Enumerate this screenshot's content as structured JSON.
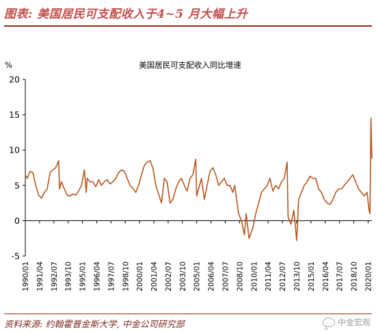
{
  "figure": {
    "title": "图表: 美国居民可支配收入于4~5 月大幅上升",
    "source": "资料来源: 约翰霍普金斯大学, 中金公司研究部",
    "watermark": "中金宏观",
    "watermark_icon": "wechat-icon"
  },
  "colors": {
    "line": "#b5561c",
    "title": "#c0504d",
    "rule": "#9c2a22",
    "axis": "#000000"
  },
  "chart_data": {
    "type": "line",
    "title": "美国居民可支配收入同比增速",
    "ylabel": "%",
    "xlabel": "",
    "ylim": [
      -5,
      20
    ],
    "yticks": [
      -5,
      0,
      5,
      10,
      15,
      20
    ],
    "xlim": [
      "1990/01",
      "2020/05"
    ],
    "xticks": [
      "1990/01",
      "1991/04",
      "1992/07",
      "1993/10",
      "1995/01",
      "1996/04",
      "1997/07",
      "1998/10",
      "2000/01",
      "2001/04",
      "2002/07",
      "2003/10",
      "2005/01",
      "2006/04",
      "2007/07",
      "2008/10",
      "2010/01",
      "2011/04",
      "2012/07",
      "2013/10",
      "2015/01",
      "2016/04",
      "2017/07",
      "2018/10",
      "2020/01"
    ],
    "grid": false,
    "legend": "none",
    "series": [
      {
        "values_unit": "%",
        "points": [
          [
            "1990/01",
            6.5
          ],
          [
            "1990/03",
            6.0
          ],
          [
            "1990/06",
            7.0
          ],
          [
            "1990/09",
            6.8
          ],
          [
            "1990/12",
            5.0
          ],
          [
            "1991/03",
            3.6
          ],
          [
            "1991/06",
            3.2
          ],
          [
            "1991/09",
            4.0
          ],
          [
            "1991/12",
            4.5
          ],
          [
            "1992/03",
            6.8
          ],
          [
            "1992/06",
            7.2
          ],
          [
            "1992/09",
            7.5
          ],
          [
            "1992/12",
            8.5
          ],
          [
            "1993/01",
            4.5
          ],
          [
            "1993/03",
            5.5
          ],
          [
            "1993/06",
            4.5
          ],
          [
            "1993/09",
            3.6
          ],
          [
            "1993/12",
            3.5
          ],
          [
            "1994/03",
            3.8
          ],
          [
            "1994/06",
            3.6
          ],
          [
            "1994/09",
            4.2
          ],
          [
            "1994/12",
            5.0
          ],
          [
            "1995/03",
            7.2
          ],
          [
            "1995/05",
            4.0
          ],
          [
            "1995/06",
            6.0
          ],
          [
            "1995/09",
            5.5
          ],
          [
            "1995/12",
            5.5
          ],
          [
            "1996/03",
            4.8
          ],
          [
            "1996/06",
            5.8
          ],
          [
            "1996/09",
            5.0
          ],
          [
            "1996/12",
            5.5
          ],
          [
            "1997/03",
            5.8
          ],
          [
            "1997/06",
            5.2
          ],
          [
            "1997/09",
            5.5
          ],
          [
            "1997/12",
            6.0
          ],
          [
            "1998/03",
            6.8
          ],
          [
            "1998/06",
            7.2
          ],
          [
            "1998/09",
            7.0
          ],
          [
            "1998/12",
            6.0
          ],
          [
            "1999/03",
            5.0
          ],
          [
            "1999/06",
            4.6
          ],
          [
            "1999/09",
            4.0
          ],
          [
            "1999/12",
            5.0
          ],
          [
            "2000/03",
            6.5
          ],
          [
            "2000/06",
            7.8
          ],
          [
            "2000/09",
            8.3
          ],
          [
            "2000/12",
            8.5
          ],
          [
            "2001/03",
            7.5
          ],
          [
            "2001/06",
            5.0
          ],
          [
            "2001/09",
            3.8
          ],
          [
            "2001/12",
            2.5
          ],
          [
            "2002/03",
            6.0
          ],
          [
            "2002/06",
            5.5
          ],
          [
            "2002/09",
            2.5
          ],
          [
            "2002/12",
            3.0
          ],
          [
            "2003/03",
            4.5
          ],
          [
            "2003/06",
            5.5
          ],
          [
            "2003/09",
            6.0
          ],
          [
            "2003/12",
            5.0
          ],
          [
            "2004/03",
            4.2
          ],
          [
            "2004/06",
            6.0
          ],
          [
            "2004/09",
            6.5
          ],
          [
            "2004/12",
            8.7
          ],
          [
            "2005/01",
            3.5
          ],
          [
            "2005/03",
            4.5
          ],
          [
            "2005/06",
            6.0
          ],
          [
            "2005/09",
            3.0
          ],
          [
            "2005/12",
            5.0
          ],
          [
            "2006/03",
            7.0
          ],
          [
            "2006/06",
            7.5
          ],
          [
            "2006/09",
            6.5
          ],
          [
            "2006/12",
            5.0
          ],
          [
            "2007/03",
            5.5
          ],
          [
            "2007/06",
            6.0
          ],
          [
            "2007/09",
            5.0
          ],
          [
            "2007/12",
            5.0
          ],
          [
            "2008/03",
            4.0
          ],
          [
            "2008/05",
            5.0
          ],
          [
            "2008/09",
            1.0
          ],
          [
            "2008/12",
            0.0
          ],
          [
            "2009/03",
            -2.0
          ],
          [
            "2009/05",
            1.0
          ],
          [
            "2009/08",
            -2.5
          ],
          [
            "2009/12",
            -1.0
          ],
          [
            "2010/03",
            1.0
          ],
          [
            "2010/06",
            2.5
          ],
          [
            "2010/09",
            4.0
          ],
          [
            "2010/12",
            4.5
          ],
          [
            "2011/03",
            5.0
          ],
          [
            "2011/06",
            6.0
          ],
          [
            "2011/09",
            4.2
          ],
          [
            "2011/12",
            5.0
          ],
          [
            "2012/03",
            4.5
          ],
          [
            "2012/06",
            5.5
          ],
          [
            "2012/09",
            6.0
          ],
          [
            "2012/12",
            8.3
          ],
          [
            "2013/01",
            0.5
          ],
          [
            "2013/04",
            -0.5
          ],
          [
            "2013/07",
            1.5
          ],
          [
            "2013/10",
            -2.8
          ],
          [
            "2013/12",
            3.0
          ],
          [
            "2014/03",
            4.0
          ],
          [
            "2014/06",
            5.0
          ],
          [
            "2014/09",
            5.5
          ],
          [
            "2014/12",
            6.3
          ],
          [
            "2015/03",
            6.0
          ],
          [
            "2015/06",
            6.0
          ],
          [
            "2015/09",
            4.5
          ],
          [
            "2015/12",
            4.0
          ],
          [
            "2016/03",
            3.0
          ],
          [
            "2016/06",
            2.5
          ],
          [
            "2016/09",
            2.3
          ],
          [
            "2016/12",
            3.0
          ],
          [
            "2017/03",
            4.0
          ],
          [
            "2017/06",
            4.5
          ],
          [
            "2017/09",
            4.5
          ],
          [
            "2017/12",
            5.0
          ],
          [
            "2018/03",
            5.5
          ],
          [
            "2018/06",
            6.0
          ],
          [
            "2018/09",
            6.5
          ],
          [
            "2018/12",
            5.5
          ],
          [
            "2019/03",
            4.5
          ],
          [
            "2019/06",
            4.0
          ],
          [
            "2019/09",
            3.5
          ],
          [
            "2019/12",
            4.0
          ],
          [
            "2020/02",
            1.5
          ],
          [
            "2020/03",
            1.0
          ],
          [
            "2020/04",
            14.5
          ],
          [
            "2020/05",
            8.8
          ]
        ]
      }
    ]
  }
}
